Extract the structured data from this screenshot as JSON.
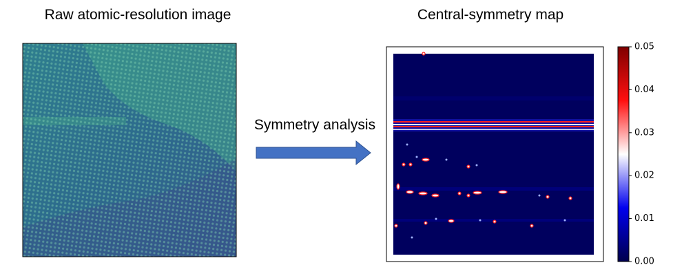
{
  "panels": [
    {
      "title": "Raw atomic-resolution image"
    },
    {
      "title": "Central-symmetry map"
    }
  ],
  "arrow": {
    "label": "Symmetry analysis"
  },
  "colorbar": {
    "lim": [
      0,
      0.05
    ],
    "ticks": [
      {
        "value": 0,
        "label": "0.00"
      },
      {
        "value": 0.01,
        "label": "0.01"
      },
      {
        "value": 0.02,
        "label": "0.02"
      },
      {
        "value": 0.03,
        "label": "0.03"
      },
      {
        "value": 0.04,
        "label": "0.04"
      },
      {
        "value": 0.05,
        "label": "0.05"
      }
    ]
  }
}
